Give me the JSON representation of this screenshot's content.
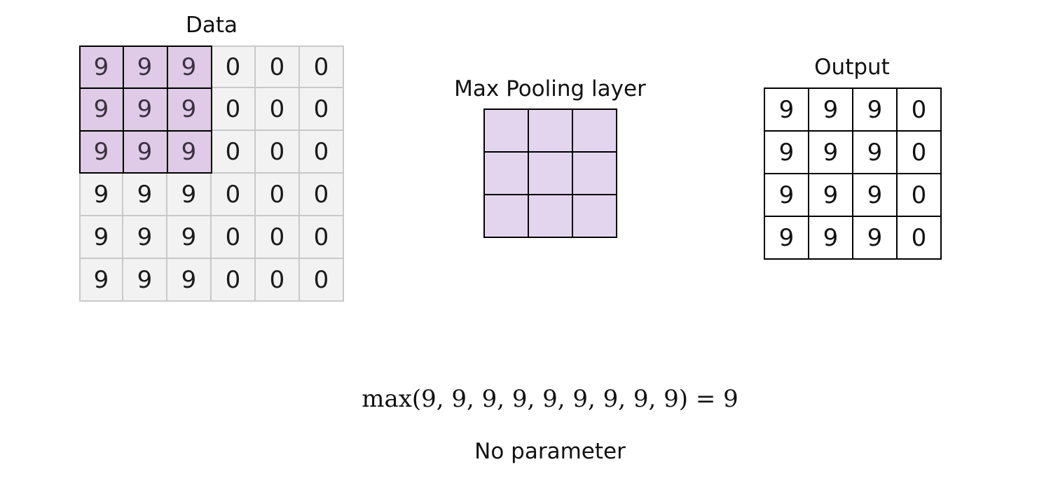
{
  "data_panel": {
    "title": "Data",
    "cells": [
      [
        "9",
        "9",
        "9",
        "0",
        "0",
        "0"
      ],
      [
        "9",
        "9",
        "9",
        "0",
        "0",
        "0"
      ],
      [
        "9",
        "9",
        "9",
        "0",
        "0",
        "0"
      ],
      [
        "9",
        "9",
        "9",
        "0",
        "0",
        "0"
      ],
      [
        "9",
        "9",
        "9",
        "0",
        "0",
        "0"
      ],
      [
        "9",
        "9",
        "9",
        "0",
        "0",
        "0"
      ]
    ],
    "highlight_window": {
      "rows": 3,
      "cols": 3
    }
  },
  "pooling_panel": {
    "title": "Max Pooling layer",
    "rows": 3,
    "cols": 3
  },
  "output_panel": {
    "title": "Output",
    "cells": [
      [
        "9",
        "9",
        "9",
        "0"
      ],
      [
        "9",
        "9",
        "9",
        "0"
      ],
      [
        "9",
        "9",
        "9",
        "0"
      ],
      [
        "9",
        "9",
        "9",
        "0"
      ]
    ]
  },
  "formula": "max(9, 9, 9, 9, 9, 9, 9, 9, 9) = 9",
  "note": "No parameter",
  "colors": {
    "highlight_fill": "#dfcbe7",
    "pool_fill": "#e4d5ef",
    "data_fill": "#f2f2f2",
    "data_border": "#c9c9c9"
  }
}
